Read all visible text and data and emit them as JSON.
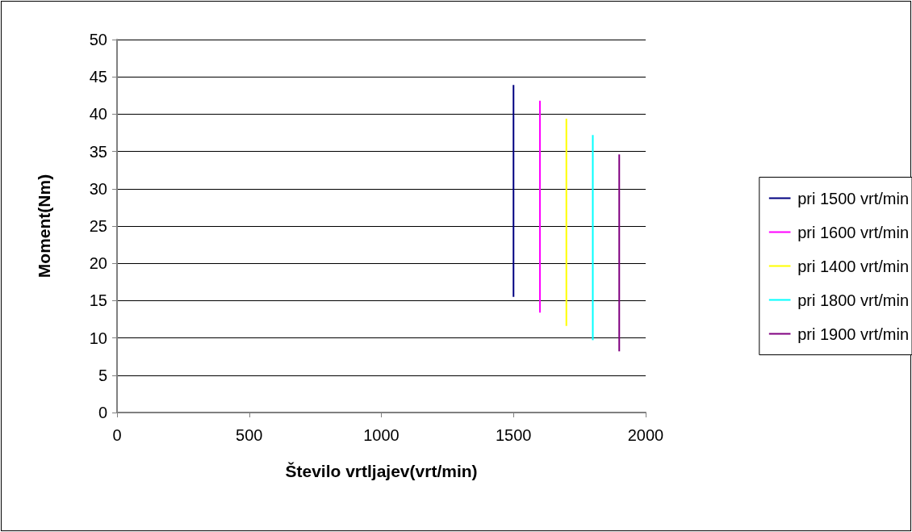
{
  "chart_data": {
    "type": "line",
    "xlabel": "Število vrtljajev(vrt/min)",
    "ylabel": "Moment(Nm)",
    "series": [
      {
        "name": "pri 1500 vrt/min",
        "color": "#000080",
        "x": [
          1500,
          1500
        ],
        "values": [
          15.5,
          43.9
        ]
      },
      {
        "name": "pri 1600 vrt/min",
        "color": "#ff00ff",
        "x": [
          1600,
          1600
        ],
        "values": [
          13.4,
          41.8
        ]
      },
      {
        "name": "pri 1400 vrt/min",
        "color": "#ffff00",
        "x": [
          1700,
          1700
        ],
        "values": [
          11.6,
          39.4
        ]
      },
      {
        "name": "pri 1800 vrt/min",
        "color": "#00ffff",
        "x": [
          1800,
          1800
        ],
        "values": [
          9.7,
          37.2
        ]
      },
      {
        "name": "pri 1900 vrt/min",
        "color": "#800080",
        "x": [
          1900,
          1900
        ],
        "values": [
          8.2,
          34.6
        ]
      }
    ],
    "xlim": [
      0,
      2000
    ],
    "xticks": [
      0,
      500,
      1000,
      1500,
      2000
    ],
    "ylim": [
      0,
      50
    ],
    "yticks": [
      0,
      5,
      10,
      15,
      20,
      25,
      30,
      35,
      40,
      45,
      50
    ],
    "grid": "y",
    "legend": "right",
    "marker": "none",
    "line_style": "solid"
  }
}
